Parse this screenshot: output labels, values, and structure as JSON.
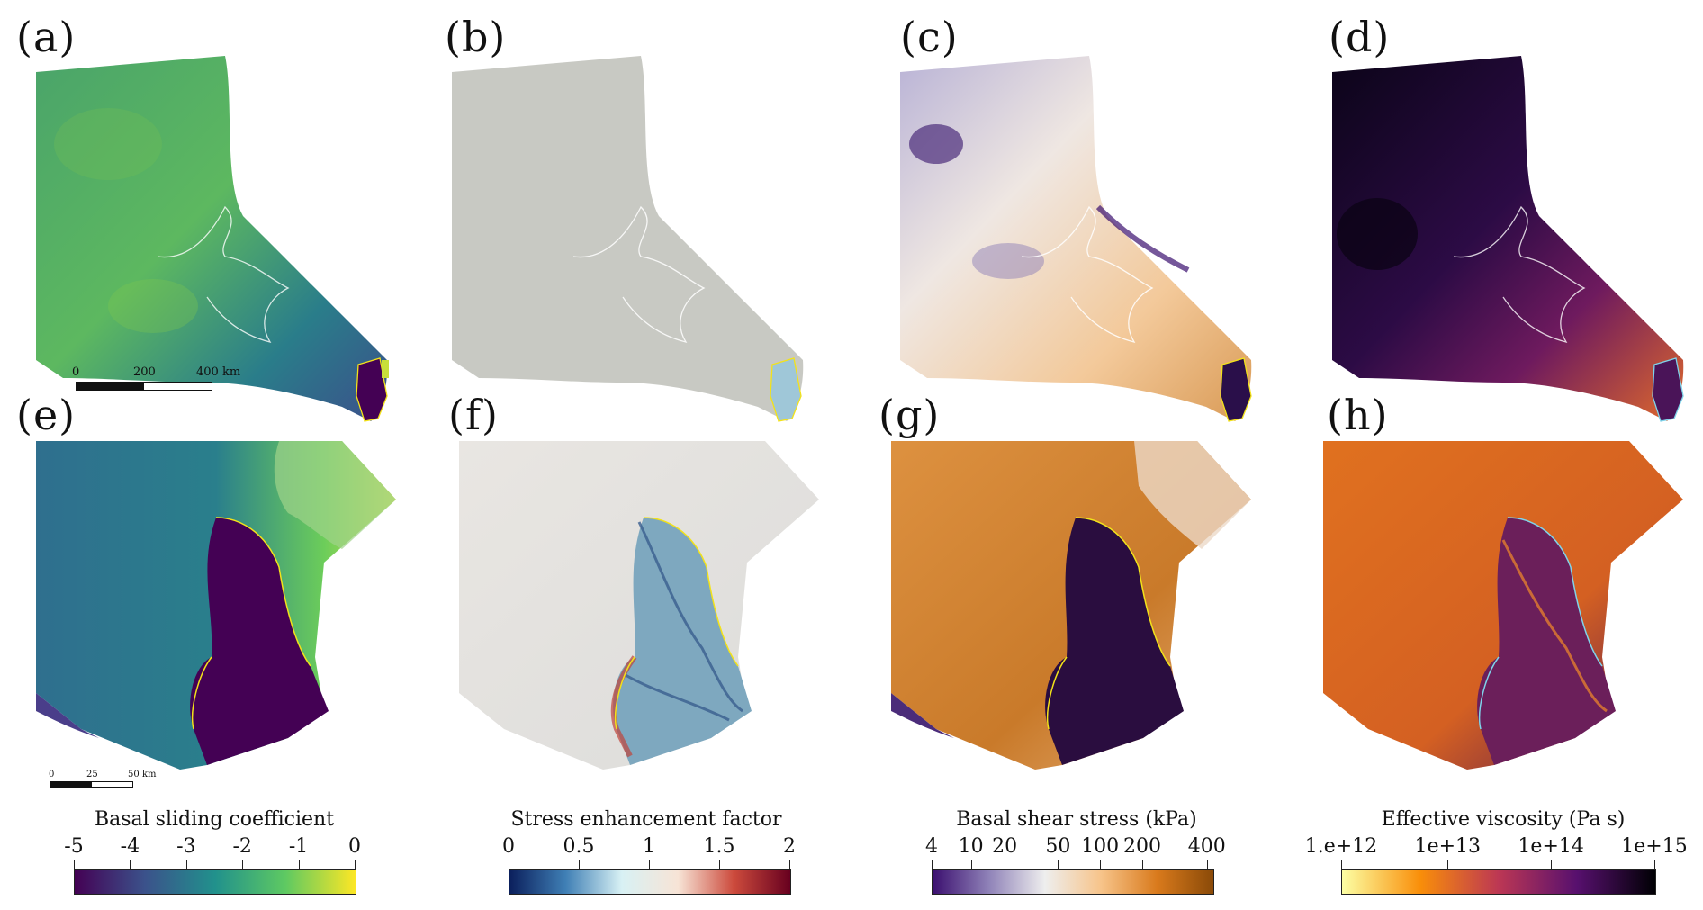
{
  "panels": [
    {
      "label": "(a)",
      "variable": "Basal sliding coefficient",
      "colormap": "viridis"
    },
    {
      "label": "(b)",
      "variable": "Stress enhancement factor",
      "colormap": "diverging-blue-red"
    },
    {
      "label": "(c)",
      "variable": "Basal shear stress",
      "colormap": "purple-orange"
    },
    {
      "label": "(d)",
      "variable": "Effective viscosity",
      "colormap": "inferno"
    },
    {
      "label": "(e)",
      "variable": "Basal sliding coefficient",
      "colormap": "viridis"
    },
    {
      "label": "(f)",
      "variable": "Stress enhancement factor",
      "colormap": "diverging-blue-red"
    },
    {
      "label": "(g)",
      "variable": "Basal shear stress",
      "colormap": "purple-orange"
    },
    {
      "label": "(h)",
      "variable": "Effective viscosity",
      "colormap": "inferno"
    }
  ],
  "scalebars": {
    "overview": {
      "labels": [
        "0",
        "200",
        "400 km"
      ]
    },
    "zoom": {
      "labels": [
        "0",
        "25",
        "50 km"
      ]
    }
  },
  "colorbars": [
    {
      "title": "Basal sliding coefficient",
      "ticks": [
        "-5",
        "-4",
        "-3",
        "-2",
        "-1",
        "0"
      ],
      "colors": [
        "#440154",
        "#3b528b",
        "#21918c",
        "#5ec962",
        "#fde725"
      ]
    },
    {
      "title": "Stress enhancement factor",
      "ticks": [
        "0",
        "0.5",
        "1",
        "1.5",
        "2"
      ],
      "colors": [
        "#0b1f5c",
        "#3f7fb5",
        "#c9ecf2",
        "#f2d6c4",
        "#cc4a3c",
        "#67001f"
      ]
    },
    {
      "title": "Basal shear stress (kPa)",
      "ticks": [
        "4",
        "10",
        "20",
        "50",
        "100",
        "200",
        "400"
      ],
      "colors": [
        "#3b0f6f",
        "#8f82b8",
        "#eeeeee",
        "#f7c48a",
        "#d97a1c",
        "#8a4a08"
      ]
    },
    {
      "title": "Effective viscosity (Pa s)",
      "ticks": [
        "1.e+12",
        "1e+13",
        "1e+14",
        "1e+15"
      ],
      "colors": [
        "#fcffa4",
        "#f98e09",
        "#bc3754",
        "#57106e",
        "#000004"
      ]
    }
  ],
  "colors": {
    "grounding_line_yellow": "#f2e21a",
    "grounding_line_cyan": "#7fd4ea",
    "contour_white": "#ffffff"
  }
}
